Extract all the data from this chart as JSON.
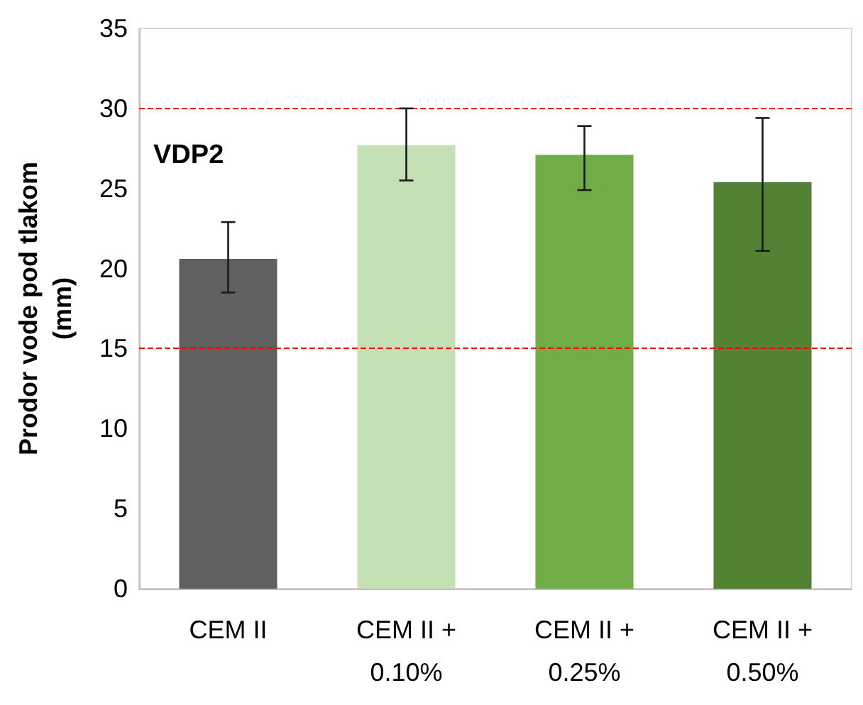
{
  "chart_data": {
    "type": "bar",
    "ylabel": "Prodor vode pod tlakom\n(mm)",
    "categories": [
      "CEM II",
      "CEM II +\n0.10%",
      "CEM II +\n0.25%",
      "CEM II +\n0.50%"
    ],
    "values": [
      20.6,
      27.7,
      27.1,
      25.4
    ],
    "colors": [
      "#606060",
      "#c5e0b4",
      "#70ad47",
      "#548235"
    ],
    "errors": [
      [
        18.5,
        22.9
      ],
      [
        25.5,
        30
      ],
      [
        24.9,
        28.9
      ],
      [
        21.1,
        29.4
      ]
    ],
    "ylim": [
      0,
      35
    ],
    "yticks": [
      0,
      5,
      10,
      15,
      20,
      25,
      30,
      35
    ],
    "grid": false,
    "ref_lines": [
      {
        "axis": "y",
        "value": 30,
        "color": "#ff0000",
        "line_style": "dashed"
      },
      {
        "axis": "y",
        "value": 15,
        "color": "#ff0000",
        "line_style": "dashed"
      }
    ],
    "annotations": [
      "VDP2"
    ]
  }
}
